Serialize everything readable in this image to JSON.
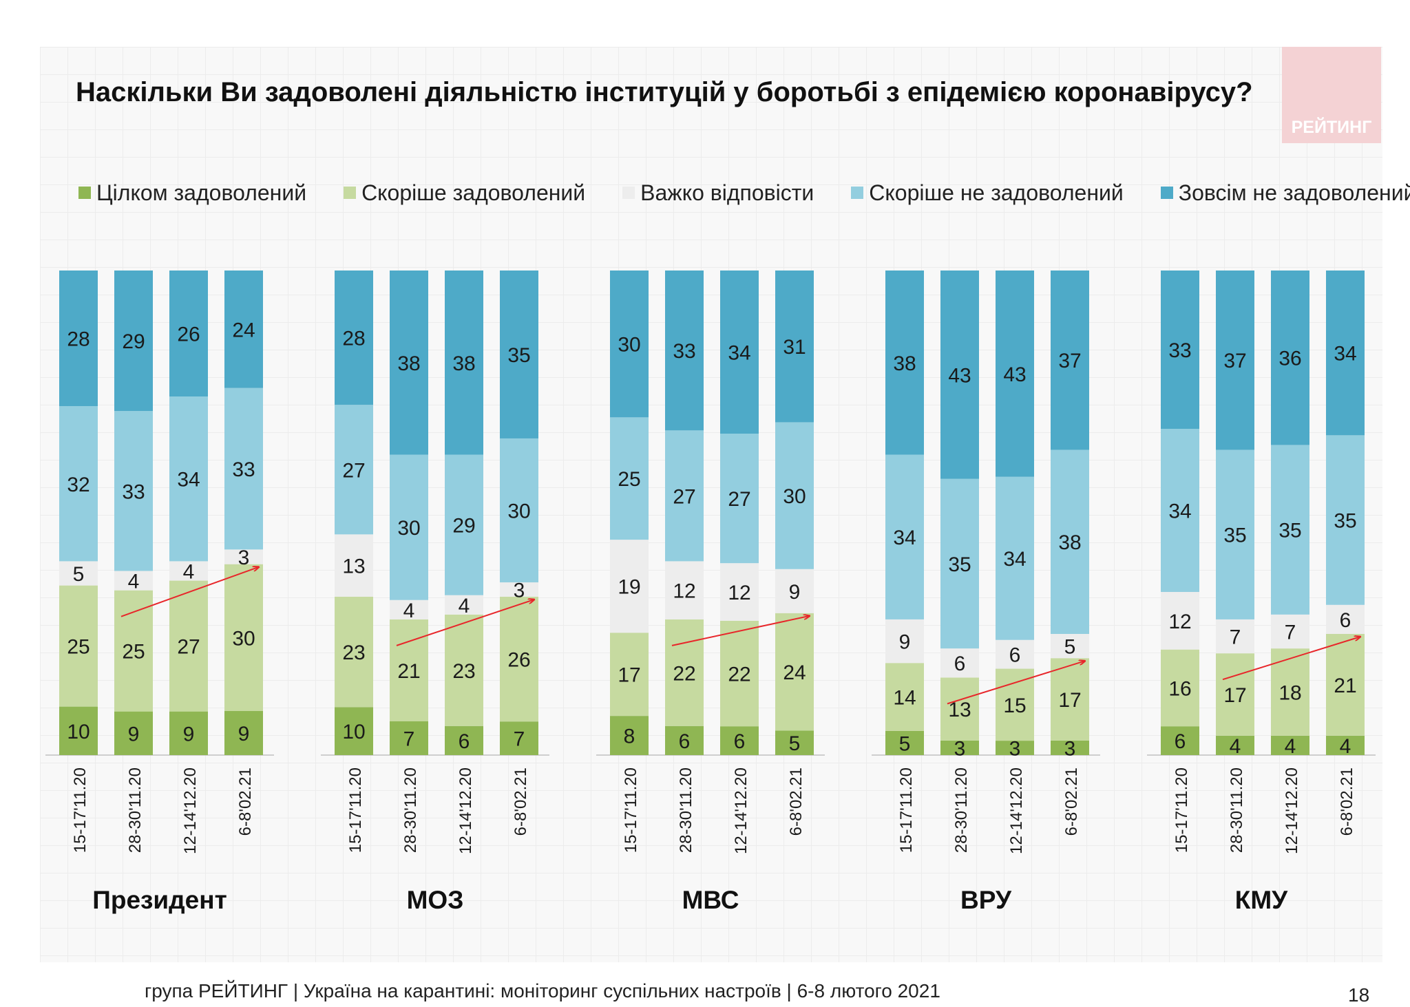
{
  "title": "Наскільки Ви задоволені діяльністю інституцій у боротьбі з епідемією коронавірусу?",
  "logo_text": "РЕЙТИНГ",
  "footer": "група РЕЙТИНГ | Україна на карантині: моніторинг суспільних настроїв | 6-8 лютого 2021",
  "page_number": "18",
  "legend": [
    {
      "label": "Цілком задоволений",
      "color": "#8fb653"
    },
    {
      "label": "Скоріше задоволений",
      "color": "#c6daa0"
    },
    {
      "label": "Важко відповісти",
      "color": "#ededed"
    },
    {
      "label": "Скоріше не задоволений",
      "color": "#93cedf"
    },
    {
      "label": "Зовсім не задоволений",
      "color": "#4eaac8"
    }
  ],
  "chart_data": {
    "type": "bar",
    "stacked": true,
    "dates": [
      "15-17'11.20",
      "28-30'11.20",
      "12-14'12.20",
      "6-8'02.21"
    ],
    "series_names": [
      "Цілком задоволений",
      "Скоріше задоволений",
      "Важко відповісти",
      "Скоріше не задоволений",
      "Зовсім не задоволений"
    ],
    "colors": [
      "#8fb653",
      "#c6daa0",
      "#ededed",
      "#93cedf",
      "#4eaac8"
    ],
    "groups": [
      {
        "name": "Президент",
        "bars": [
          [
            10,
            25,
            5,
            32,
            28
          ],
          [
            9,
            25,
            4,
            33,
            29
          ],
          [
            9,
            27,
            4,
            34,
            26
          ],
          [
            9,
            30,
            3,
            33,
            24
          ]
        ]
      },
      {
        "name": "МОЗ",
        "bars": [
          [
            10,
            23,
            13,
            27,
            28
          ],
          [
            7,
            21,
            4,
            30,
            38
          ],
          [
            6,
            23,
            4,
            29,
            38
          ],
          [
            7,
            26,
            3,
            30,
            35
          ]
        ]
      },
      {
        "name": "МВС",
        "bars": [
          [
            8,
            17,
            19,
            25,
            30
          ],
          [
            6,
            22,
            12,
            27,
            33
          ],
          [
            6,
            22,
            12,
            27,
            34
          ],
          [
            5,
            24,
            9,
            30,
            31
          ]
        ]
      },
      {
        "name": "ВРУ",
        "bars": [
          [
            5,
            14,
            9,
            34,
            38
          ],
          [
            3,
            13,
            6,
            35,
            43
          ],
          [
            3,
            15,
            6,
            34,
            43
          ],
          [
            3,
            17,
            5,
            38,
            37
          ]
        ]
      },
      {
        "name": "КМУ",
        "bars": [
          [
            6,
            16,
            12,
            34,
            33
          ],
          [
            4,
            17,
            7,
            35,
            37
          ],
          [
            4,
            18,
            7,
            35,
            36
          ],
          [
            4,
            21,
            6,
            35,
            34
          ]
        ]
      }
    ],
    "trend_arrows": true,
    "ylim": [
      0,
      100
    ]
  }
}
